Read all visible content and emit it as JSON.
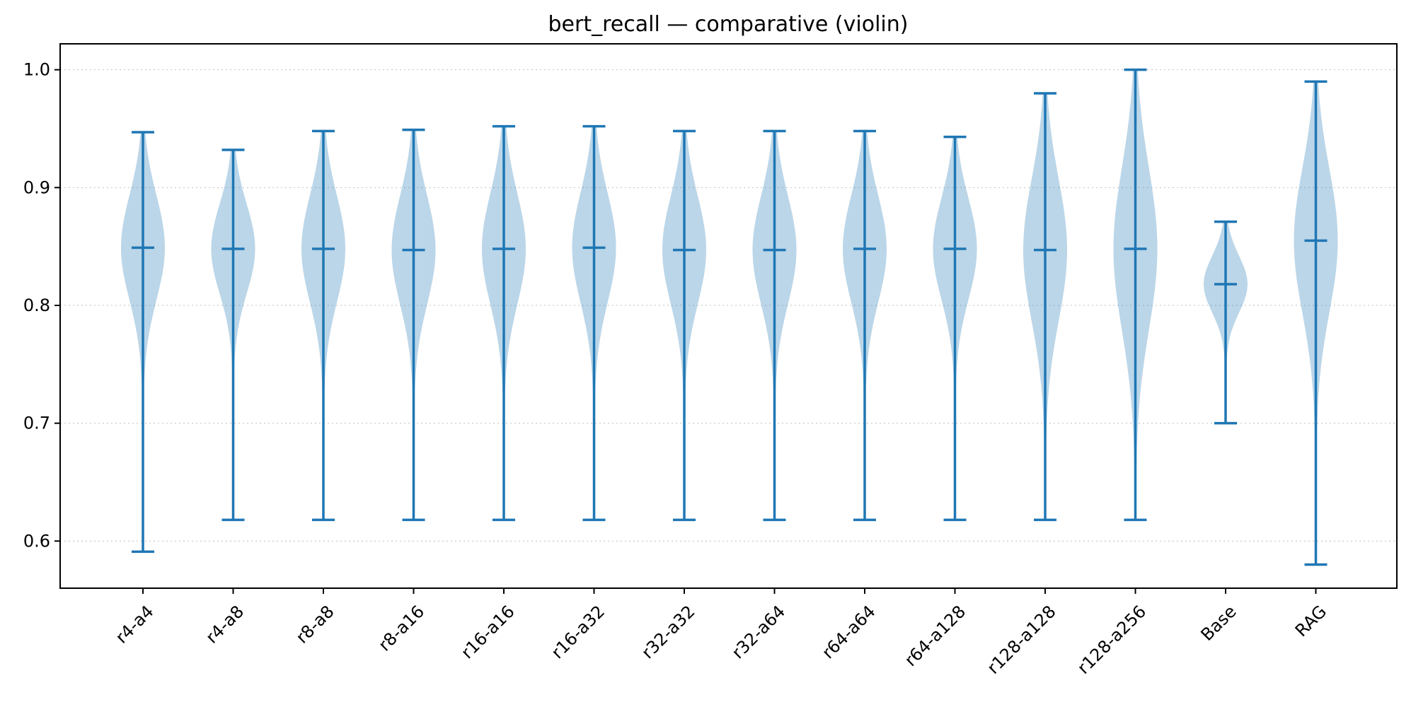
{
  "chart_data": {
    "type": "violin",
    "title": "bert_recall — comparative (violin)",
    "xlabel": "",
    "ylabel": "",
    "ylim": [
      0.56,
      1.022
    ],
    "y_ticks": [
      0.6,
      0.7,
      0.8,
      0.9,
      1.0
    ],
    "y_tick_labels": [
      "0.6",
      "0.7",
      "0.8",
      "0.9",
      "1.0"
    ],
    "grid": "horizontal dotted",
    "legend": "none",
    "color": "#1f77b4",
    "categories": [
      "r4-a4",
      "r4-a8",
      "r8-a8",
      "r8-a16",
      "r16-a16",
      "r16-a32",
      "r32-a32",
      "r32-a64",
      "r64-a64",
      "r64-a128",
      "r128-a128",
      "r128-a256",
      "Base",
      "RAG"
    ],
    "series": [
      {
        "category": "r4-a4",
        "min": 0.591,
        "max": 0.947,
        "median": 0.849
      },
      {
        "category": "r4-a8",
        "min": 0.618,
        "max": 0.932,
        "median": 0.848
      },
      {
        "category": "r8-a8",
        "min": 0.618,
        "max": 0.948,
        "median": 0.848
      },
      {
        "category": "r8-a16",
        "min": 0.618,
        "max": 0.949,
        "median": 0.847
      },
      {
        "category": "r16-a16",
        "min": 0.618,
        "max": 0.952,
        "median": 0.848
      },
      {
        "category": "r16-a32",
        "min": 0.618,
        "max": 0.952,
        "median": 0.849
      },
      {
        "category": "r32-a32",
        "min": 0.618,
        "max": 0.948,
        "median": 0.847
      },
      {
        "category": "r32-a64",
        "min": 0.618,
        "max": 0.948,
        "median": 0.847
      },
      {
        "category": "r64-a64",
        "min": 0.618,
        "max": 0.948,
        "median": 0.848
      },
      {
        "category": "r64-a128",
        "min": 0.618,
        "max": 0.943,
        "median": 0.848
      },
      {
        "category": "r128-a128",
        "min": 0.618,
        "max": 0.98,
        "median": 0.847
      },
      {
        "category": "r128-a256",
        "min": 0.618,
        "max": 1.0,
        "median": 0.848
      },
      {
        "category": "Base",
        "min": 0.7,
        "max": 0.871,
        "median": 0.818
      },
      {
        "category": "RAG",
        "min": 0.58,
        "max": 0.99,
        "median": 0.855
      }
    ]
  }
}
